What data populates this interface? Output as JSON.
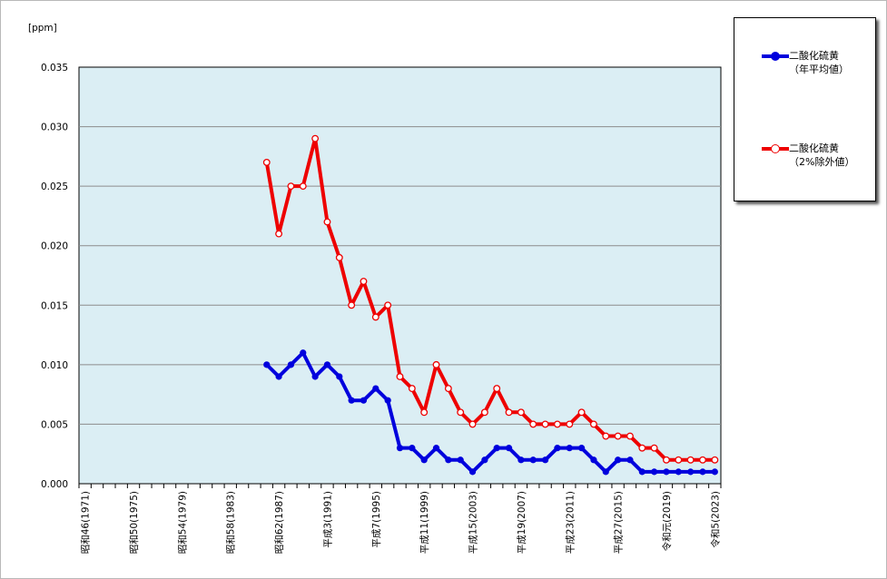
{
  "chart_data": {
    "type": "line",
    "unit_label": "[ppm]",
    "ylim": [
      0,
      0.035
    ],
    "y_ticks": [
      "0.000",
      "0.005",
      "0.010",
      "0.015",
      "0.020",
      "0.025",
      "0.030",
      "0.035"
    ],
    "x_years": [
      1971,
      1972,
      1973,
      1974,
      1975,
      1976,
      1977,
      1978,
      1979,
      1980,
      1981,
      1982,
      1983,
      1984,
      1985,
      1986,
      1987,
      1988,
      1989,
      1990,
      1991,
      1992,
      1993,
      1994,
      1995,
      1996,
      1997,
      1998,
      1999,
      2000,
      2001,
      2002,
      2003,
      2004,
      2005,
      2006,
      2007,
      2008,
      2009,
      2010,
      2011,
      2012,
      2013,
      2014,
      2015,
      2016,
      2017,
      2018,
      2019,
      2020,
      2021,
      2022,
      2023
    ],
    "x_tick_labels": [
      {
        "year": 1971,
        "label": "昭和46(1971)"
      },
      {
        "year": 1975,
        "label": "昭和50(1975)"
      },
      {
        "year": 1979,
        "label": "昭和54(1979)"
      },
      {
        "year": 1983,
        "label": "昭和58(1983)"
      },
      {
        "year": 1987,
        "label": "昭和62(1987)"
      },
      {
        "year": 1991,
        "label": "平成3(1991)"
      },
      {
        "year": 1995,
        "label": "平成7(1995)"
      },
      {
        "year": 1999,
        "label": "平成11(1999)"
      },
      {
        "year": 2003,
        "label": "平成15(2003)"
      },
      {
        "year": 2007,
        "label": "平成19(2007)"
      },
      {
        "year": 2011,
        "label": "平成23(2011)"
      },
      {
        "year": 2015,
        "label": "平成27(2015)"
      },
      {
        "year": 2019,
        "label": "令和元(2019)"
      },
      {
        "year": 2023,
        "label": "令和5(2023)"
      }
    ],
    "grid": "horizontal",
    "plot_background": "#dbeef4",
    "legend_position": "top-right",
    "series": [
      {
        "name_line1": "二酸化硫黄",
        "name_line2": "（年平均値）",
        "color": "#0000dd",
        "marker": "filled",
        "x": [
          1986,
          1987,
          1988,
          1989,
          1990,
          1991,
          1992,
          1993,
          1994,
          1995,
          1996,
          1997,
          1998,
          1999,
          2000,
          2001,
          2002,
          2003,
          2004,
          2005,
          2006,
          2007,
          2008,
          2009,
          2010,
          2011,
          2012,
          2013,
          2014,
          2015,
          2016,
          2017,
          2018,
          2019,
          2020,
          2021,
          2022,
          2023
        ],
        "values": [
          0.01,
          0.009,
          0.01,
          0.011,
          0.009,
          0.01,
          0.009,
          0.007,
          0.007,
          0.008,
          0.007,
          0.003,
          0.003,
          0.002,
          0.003,
          0.002,
          0.002,
          0.001,
          0.002,
          0.003,
          0.003,
          0.002,
          0.002,
          0.002,
          0.003,
          0.003,
          0.003,
          0.002,
          0.001,
          0.002,
          0.002,
          0.001,
          0.001,
          0.001,
          0.001,
          0.001,
          0.001,
          0.001
        ]
      },
      {
        "name_line1": "二酸化硫黄",
        "name_line2": "（2%除外値）",
        "color": "#ee0000",
        "marker": "hollow",
        "x": [
          1986,
          1987,
          1988,
          1989,
          1990,
          1991,
          1992,
          1993,
          1994,
          1995,
          1996,
          1997,
          1998,
          1999,
          2000,
          2001,
          2002,
          2003,
          2004,
          2005,
          2006,
          2007,
          2008,
          2009,
          2010,
          2011,
          2012,
          2013,
          2014,
          2015,
          2016,
          2017,
          2018,
          2019,
          2020,
          2021,
          2022,
          2023
        ],
        "values": [
          0.027,
          0.021,
          0.025,
          0.025,
          0.029,
          0.022,
          0.019,
          0.015,
          0.017,
          0.014,
          0.015,
          0.009,
          0.008,
          0.006,
          0.01,
          0.008,
          0.006,
          0.005,
          0.006,
          0.008,
          0.006,
          0.006,
          0.005,
          0.005,
          0.005,
          0.005,
          0.006,
          0.005,
          0.004,
          0.004,
          0.004,
          0.003,
          0.003,
          0.002,
          0.002,
          0.002,
          0.002,
          0.002
        ]
      }
    ]
  }
}
